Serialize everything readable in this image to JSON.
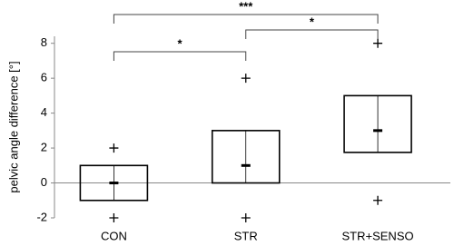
{
  "chart_data": {
    "type": "box",
    "y_label": "pelvic angle difference [°]",
    "categories": [
      "CON",
      "STR",
      "STR+SENSO"
    ],
    "boxes": [
      {
        "min": -2,
        "q1": -1,
        "median": 0,
        "q3": 1,
        "max": 2
      },
      {
        "min": -2,
        "q1": 0,
        "median": 1,
        "q3": 3,
        "max": 6
      },
      {
        "min": -1,
        "q1": 1.75,
        "median": 3,
        "q3": 5,
        "max": 8
      }
    ],
    "annotations": [
      "*",
      "*",
      "***"
    ],
    "ylim": [
      -2,
      8.4
    ],
    "yticks": [
      -2,
      0,
      2,
      4,
      6,
      8
    ],
    "grid": false,
    "color": "#000000"
  }
}
